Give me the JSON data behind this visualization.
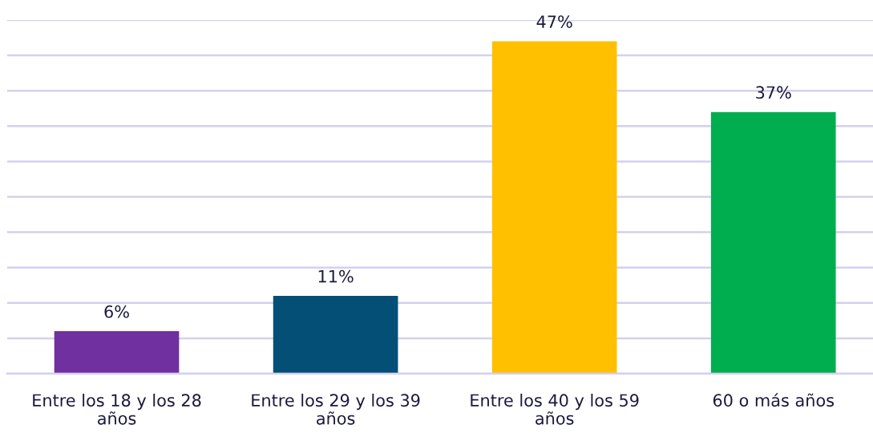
{
  "chart_data": {
    "type": "bar",
    "categories": [
      "Entre los 18 y los 28 años",
      "Entre los 29 y los 39 años",
      "Entre los 40 y los 59 años",
      "60 o más años"
    ],
    "values": [
      6,
      11,
      47,
      37
    ],
    "colors": [
      "#7030a0",
      "#034f75",
      "#ffc000",
      "#00ae4f"
    ],
    "value_labels": [
      "6%",
      "11%",
      "47%",
      "37%"
    ],
    "ylim": [
      0,
      50
    ],
    "yticks": [
      0,
      5,
      10,
      15,
      20,
      25,
      30,
      35,
      40,
      45,
      50
    ],
    "grid": "y",
    "tick_labels": "x"
  }
}
